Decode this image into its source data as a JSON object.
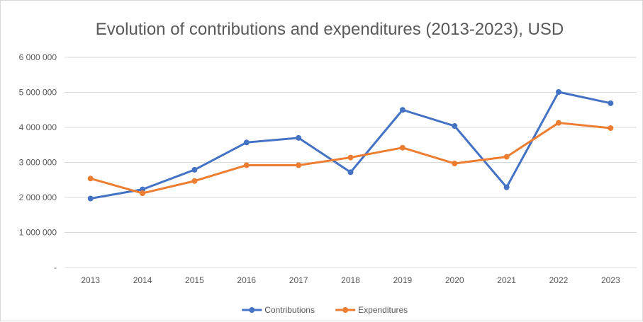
{
  "chart_data": {
    "type": "line",
    "title": "Evolution of contributions and expenditures (2013-2023), USD",
    "xlabel": "",
    "ylabel": "",
    "categories": [
      "2013",
      "2014",
      "2015",
      "2016",
      "2017",
      "2018",
      "2019",
      "2020",
      "2021",
      "2022",
      "2023"
    ],
    "ylim": [
      0,
      6000000
    ],
    "yticks": [
      0,
      1000000,
      2000000,
      3000000,
      4000000,
      5000000,
      6000000
    ],
    "ytick_labels": [
      "-",
      "1 000 000",
      "2 000 000",
      "3 000 000",
      "4 000 000",
      "5 000 000",
      "6 000 000"
    ],
    "grid": true,
    "legend_position": "bottom",
    "series": [
      {
        "name": "Contributions",
        "color": "#4472C4",
        "values": [
          1970000,
          2230000,
          2790000,
          3570000,
          3700000,
          2720000,
          4500000,
          4040000,
          2290000,
          5010000,
          4690000
        ]
      },
      {
        "name": "Expenditures",
        "color": "#ED7D31",
        "values": [
          2540000,
          2120000,
          2470000,
          2920000,
          2920000,
          3140000,
          3420000,
          2970000,
          3160000,
          4130000,
          3980000
        ]
      }
    ]
  }
}
